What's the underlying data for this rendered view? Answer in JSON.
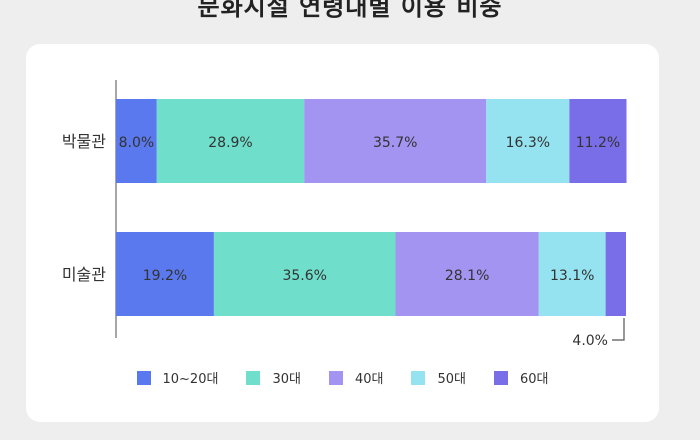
{
  "chart_data": {
    "type": "bar",
    "orientation": "horizontal",
    "stacked": true,
    "title": "문화시설 연령대별 이용 비중",
    "categories": [
      "박물관",
      "미술관"
    ],
    "series": [
      {
        "name": "10~20대",
        "color": "#5b79ee",
        "values": [
          8.0,
          19.2
        ],
        "labels": [
          "8.0%",
          "19.2%"
        ]
      },
      {
        "name": "30대",
        "color": "#6fdfcc",
        "values": [
          28.9,
          35.6
        ],
        "labels": [
          "28.9%",
          "35.6%"
        ]
      },
      {
        "name": "40대",
        "color": "#a294f0",
        "values": [
          35.7,
          28.1
        ],
        "labels": [
          "35.7%",
          "28.1%"
        ]
      },
      {
        "name": "50대",
        "color": "#95e3f0",
        "values": [
          16.3,
          13.1
        ],
        "labels": [
          "16.3%",
          "13.1%"
        ]
      },
      {
        "name": "60대",
        "color": "#7a6ee8",
        "values": [
          11.2,
          4.0
        ],
        "labels": [
          "11.2%",
          "4.0%"
        ]
      }
    ],
    "xlim": [
      0,
      100
    ],
    "grid": false,
    "legend_position": "bottom"
  }
}
